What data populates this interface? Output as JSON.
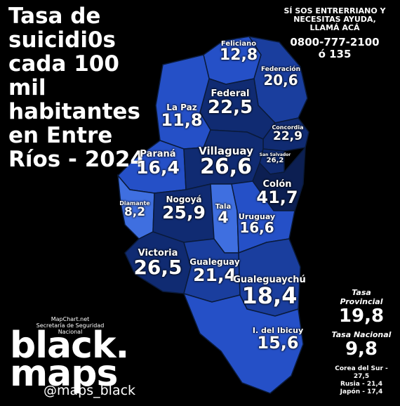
{
  "title": "Tasa de suicidi0s cada 100 mil habitantes en Entre Ríos - 2024",
  "helpline": {
    "text": "SÍ SOS ENTRERRIANO Y NECESITAS AYUDA, LLAMÁ ACÁ",
    "phone1": "0800-777-2100",
    "phone2": "ó  135"
  },
  "colors": {
    "background": "#000000",
    "text": "#ffffff",
    "scale": [
      "#3f6fe0",
      "#2550c7",
      "#1a3e9e",
      "#102b72",
      "#0c1f52"
    ]
  },
  "departments": [
    {
      "name": "Feliciano",
      "value": "12,8",
      "rate": 12.8
    },
    {
      "name": "Federación",
      "value": "20,6",
      "rate": 20.6
    },
    {
      "name": "Federal",
      "value": "22,5",
      "rate": 22.5
    },
    {
      "name": "La Paz",
      "value": "11,8",
      "rate": 11.8
    },
    {
      "name": "Concordia",
      "value": "22,9",
      "rate": 22.9
    },
    {
      "name": "Paraná",
      "value": "16,4",
      "rate": 16.4
    },
    {
      "name": "Villaguay",
      "value": "26,6",
      "rate": 26.6
    },
    {
      "name": "San Salvador",
      "value": "26,2",
      "rate": 26.2
    },
    {
      "name": "Colón",
      "value": "41,7",
      "rate": 41.7
    },
    {
      "name": "Diamante",
      "value": "8,2",
      "rate": 8.2
    },
    {
      "name": "Nogoyá",
      "value": "25,9",
      "rate": 25.9
    },
    {
      "name": "Tala",
      "value": "4",
      "rate": 4
    },
    {
      "name": "Uruguay",
      "value": "16,6",
      "rate": 16.6
    },
    {
      "name": "Victoria",
      "value": "26,5",
      "rate": 26.5
    },
    {
      "name": "Gualeguay",
      "value": "21,4",
      "rate": 21.4
    },
    {
      "name": "Gualeguaychú",
      "value": "18,4",
      "rate": 18.4
    },
    {
      "name": "I. del Ibicuy",
      "value": "15,6",
      "rate": 15.6
    }
  ],
  "rates": {
    "provincial_label": "Tasa Provincial",
    "provincial_value": "19,8",
    "national_label": "Tasa Nacional",
    "national_value": "9,8"
  },
  "international": [
    "Corea del Sur - 27,5",
    "Rusia - 21,4",
    "Japón - 17,4"
  ],
  "credits": [
    "MapChart.net",
    "Secretaría de Seguridad",
    "Nacional"
  ],
  "brand": {
    "line1": "black.",
    "line2": "maps",
    "handle": "@maps_black"
  }
}
